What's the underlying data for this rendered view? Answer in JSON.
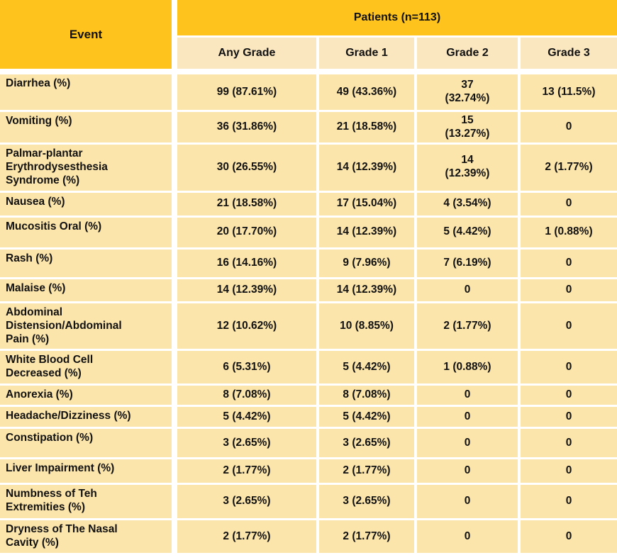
{
  "colors": {
    "header_orange": "#FFC31E",
    "subheader_cream": "#FAE7C0",
    "body_cream": "#FCE5AB",
    "divider_white": "#FFFFFF",
    "text_black": "#111111"
  },
  "chart_data": {
    "type": "table",
    "corner_header": "Event",
    "group_header": "Patients (n=113)",
    "columns": [
      "Any Grade",
      "Grade 1",
      "Grade 2",
      "Grade 3"
    ],
    "rows": [
      {
        "event": "Diarrhea (%)",
        "values": [
          "99 (87.61%)",
          "49 (43.36%)",
          "37\n(32.74%)",
          "13 (11.5%)"
        ]
      },
      {
        "event": "Vomiting (%)",
        "values": [
          "36 (31.86%)",
          "21 (18.58%)",
          "15\n(13.27%)",
          "0"
        ]
      },
      {
        "event": "Palmar-plantar\nErythrodysesthesia\nSyndrome (%)",
        "values": [
          "30 (26.55%)",
          "14 (12.39%)",
          "14\n(12.39%)",
          "2 (1.77%)"
        ]
      },
      {
        "event": "Nausea (%)",
        "values": [
          "21 (18.58%)",
          "17 (15.04%)",
          "4 (3.54%)",
          "0"
        ]
      },
      {
        "event": "Mucositis Oral (%)",
        "values": [
          "20 (17.70%)",
          "14 (12.39%)",
          "5 (4.42%)",
          "1 (0.88%)"
        ]
      },
      {
        "event": "Rash (%)",
        "values": [
          "16 (14.16%)",
          "9 (7.96%)",
          "7 (6.19%)",
          "0"
        ]
      },
      {
        "event": "Malaise (%)",
        "values": [
          "14 (12.39%)",
          "14 (12.39%)",
          "0",
          "0"
        ]
      },
      {
        "event": "Abdominal\nDistension/Abdominal\nPain (%)",
        "values": [
          "12 (10.62%)",
          "10 (8.85%)",
          "2 (1.77%)",
          "0"
        ]
      },
      {
        "event": "White Blood Cell\nDecreased (%)",
        "values": [
          "6 (5.31%)",
          "5 (4.42%)",
          "1 (0.88%)",
          "0"
        ]
      },
      {
        "event": "Anorexia (%)",
        "values": [
          "8 (7.08%)",
          "8 (7.08%)",
          "0",
          "0"
        ]
      },
      {
        "event": "Headache/Dizziness (%)",
        "values": [
          "5 (4.42%)",
          "5 (4.42%)",
          "0",
          "0"
        ]
      },
      {
        "event": "Constipation (%)",
        "values": [
          "3 (2.65%)",
          "3 (2.65%)",
          "0",
          "0"
        ]
      },
      {
        "event": "Liver Impairment (%)",
        "values": [
          "2 (1.77%)",
          "2 (1.77%)",
          "0",
          "0"
        ]
      },
      {
        "event": "Numbness of Teh\nExtremities (%)",
        "values": [
          "3 (2.65%)",
          "3 (2.65%)",
          "0",
          "0"
        ]
      },
      {
        "event": "Dryness of The Nasal\nCavity (%)",
        "values": [
          "2 (1.77%)",
          "2 (1.77%)",
          "0",
          "0"
        ]
      }
    ]
  }
}
